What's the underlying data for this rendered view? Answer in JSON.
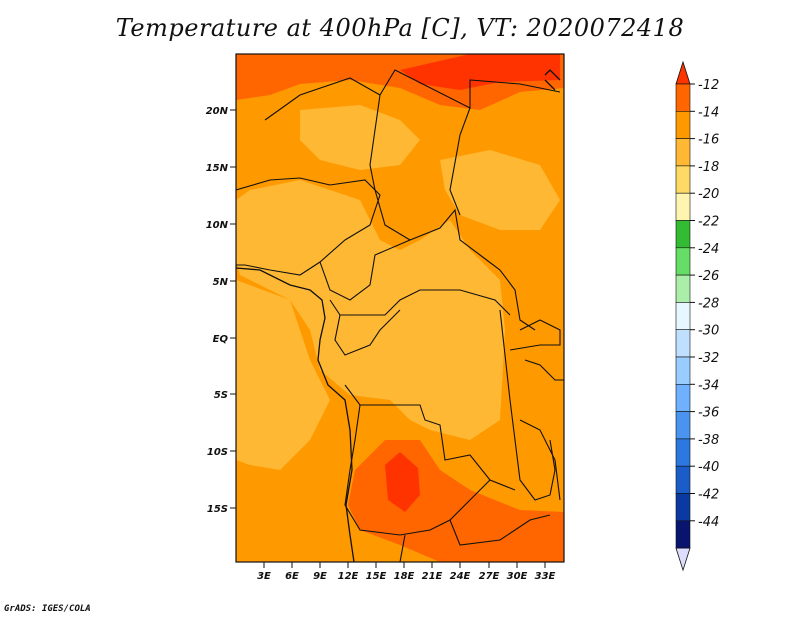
{
  "title": "Temperature at 400hPa [C], VT: 2020072418",
  "credit": "GrADS: IGES/COLA",
  "map": {
    "lon_range": [
      0,
      35
    ],
    "lat_range": [
      -20,
      24
    ],
    "lon_ticks": [
      "3E",
      "6E",
      "9E",
      "12E",
      "15E",
      "18E",
      "21E",
      "24E",
      "27E",
      "30E",
      "33E"
    ],
    "lat_ticks": [
      "20N",
      "15N",
      "10N",
      "5N",
      "EQ",
      "5S",
      "10S",
      "15S"
    ]
  },
  "colorbar": {
    "labels": [
      "-12",
      "-14",
      "-16",
      "-18",
      "-20",
      "-22",
      "-24",
      "-26",
      "-28",
      "-30",
      "-32",
      "-34",
      "-36",
      "-38",
      "-40",
      "-42",
      "-44"
    ],
    "colors": [
      "#ff3300",
      "#ff6600",
      "#ff9900",
      "#ffb833",
      "#ffd966",
      "#fff5b0",
      "#33bb33",
      "#66dd66",
      "#aaeeaa",
      "#e6f7ff",
      "#bfdfff",
      "#99ccff",
      "#6fb0ff",
      "#4a94f0",
      "#2c78e0",
      "#1a5cc8",
      "#0a3aa0",
      "#08146e",
      "#ddddff"
    ]
  }
}
